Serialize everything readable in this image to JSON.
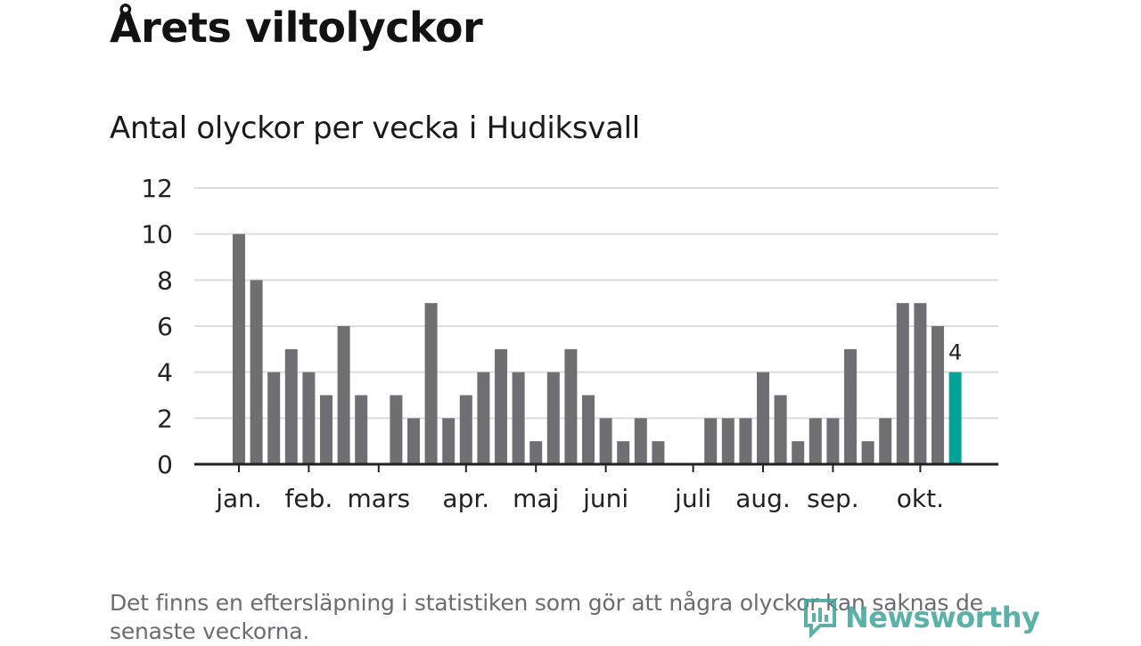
{
  "title": "Årets viltolyckor",
  "subtitle": "Antal olyckor per vecka i Hudiksvall",
  "note": "Det finns en eftersläpning i statistiken som gör att några olyckor kan saknas de senaste veckorna.",
  "logo": {
    "text": "Newsworthy",
    "icon": "newsworthy-logo-icon",
    "color": "#3fa49a"
  },
  "colors": {
    "bar": "#6f6e73",
    "highlight": "#00a396",
    "grid": "#dcdcdc",
    "axis": "#222222"
  },
  "chart_data": {
    "type": "bar",
    "title": "Antal olyckor per vecka i Hudiksvall",
    "xlabel": "",
    "ylabel": "",
    "ylim": [
      0,
      12
    ],
    "yticks": [
      "0",
      "2",
      "4",
      "6",
      "8",
      "10",
      "12"
    ],
    "grid": true,
    "month_labels": [
      "jan.",
      "feb.",
      "mars",
      "apr.",
      "maj",
      "juni",
      "juli",
      "aug.",
      "sep.",
      "okt."
    ],
    "month_tick_weeks": [
      1,
      5,
      9,
      14,
      18,
      22,
      27,
      31,
      35,
      40
    ],
    "weeks": [
      1,
      2,
      3,
      4,
      5,
      6,
      7,
      8,
      9,
      10,
      11,
      12,
      13,
      14,
      15,
      16,
      17,
      18,
      19,
      20,
      21,
      22,
      23,
      24,
      25,
      26,
      27,
      28,
      29,
      30,
      31,
      32,
      33,
      34,
      35,
      36,
      37,
      38,
      39,
      40,
      41,
      42
    ],
    "values": [
      10,
      8,
      4,
      5,
      4,
      3,
      6,
      3,
      0,
      3,
      2,
      7,
      2,
      3,
      4,
      5,
      4,
      1,
      4,
      5,
      3,
      2,
      1,
      2,
      1,
      0,
      0,
      2,
      2,
      2,
      4,
      3,
      1,
      2,
      2,
      5,
      1,
      2,
      7,
      7,
      6,
      4
    ],
    "highlight_index": 41,
    "highlight_label": "4"
  }
}
